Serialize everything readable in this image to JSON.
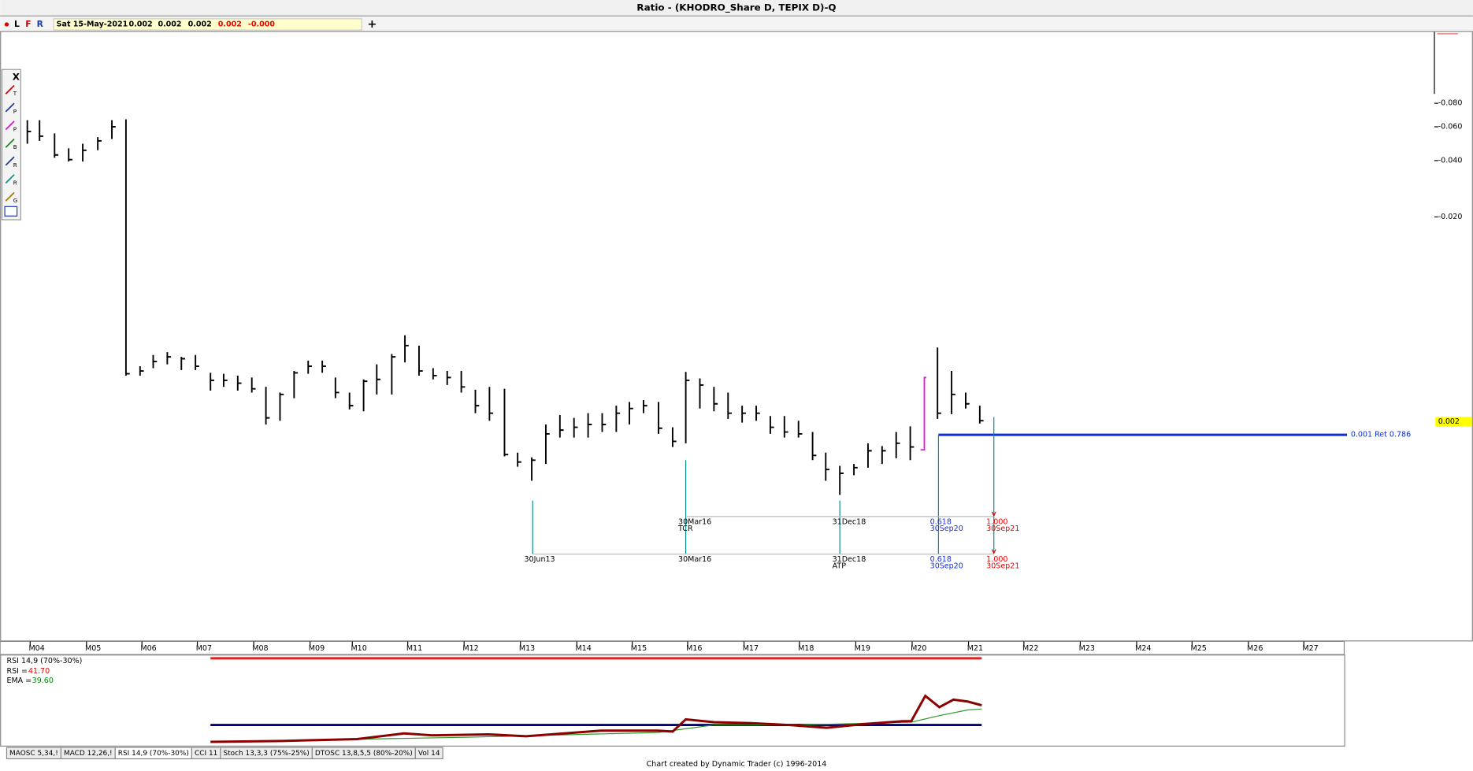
{
  "window": {
    "title": "Ratio - (KHODRO_Share D, TEPIX D)-Q"
  },
  "toolbar": {
    "buttons": [
      "L",
      "F",
      "R"
    ],
    "date": "Sat 15-May-2021",
    "values": [
      "0.002",
      "0.002",
      "0.002",
      "0.002",
      "-0.000"
    ],
    "add": "+"
  },
  "tools": {
    "close": "X",
    "letters": [
      "T",
      "P",
      "P",
      "B",
      "R",
      "R",
      "G"
    ]
  },
  "price_axis": {
    "labels": [
      "-0.080",
      "-0.060",
      "-0.040",
      "-0.020"
    ],
    "last": "0.002"
  },
  "time_axis": [
    "M04",
    "M05",
    "M06",
    "M07",
    "M08",
    "M09",
    "M10",
    "M11",
    "M12",
    "M13",
    "M14",
    "M15",
    "M16",
    "M17",
    "M18",
    "M19",
    "M20",
    "M21",
    "M22",
    "M23",
    "M24",
    "M25",
    "M26",
    "M27"
  ],
  "retracement_label": "0.001 Ret 0.786",
  "annotations": {
    "upper": [
      {
        "date": "30Mar16",
        "tag": "TCR"
      },
      {
        "date": "31Dec18"
      },
      {
        "ratio": "0.618",
        "date": "30Sep20"
      },
      {
        "ratio": "1.000",
        "date": "30Sep21"
      }
    ],
    "lower": [
      {
        "date": "30Jun13"
      },
      {
        "date": "30Mar16"
      },
      {
        "date": "31Dec18",
        "tag": "ATP"
      },
      {
        "ratio": "0.618",
        "date": "30Sep20"
      },
      {
        "ratio": "1.000",
        "date": "30Sep21"
      }
    ]
  },
  "indicator": {
    "title": "RSI 14,9 (70%-30%)",
    "rsi_label": "RSI =",
    "rsi_value": "41.70",
    "ema_label": "EMA =",
    "ema_value": "39.60"
  },
  "tabs": [
    "MAOSC 5,34,!",
    "MACD 12,26,!",
    "RSI 14,9 (70%-30%)",
    "CCI 11",
    "Stoch 13,3,3 (75%-25%)",
    "DTOSC 13,8,5,5 (80%-20%)",
    "Vol 14"
  ],
  "footer": "Chart created by Dynamic Trader  (c)  1996-2014"
}
